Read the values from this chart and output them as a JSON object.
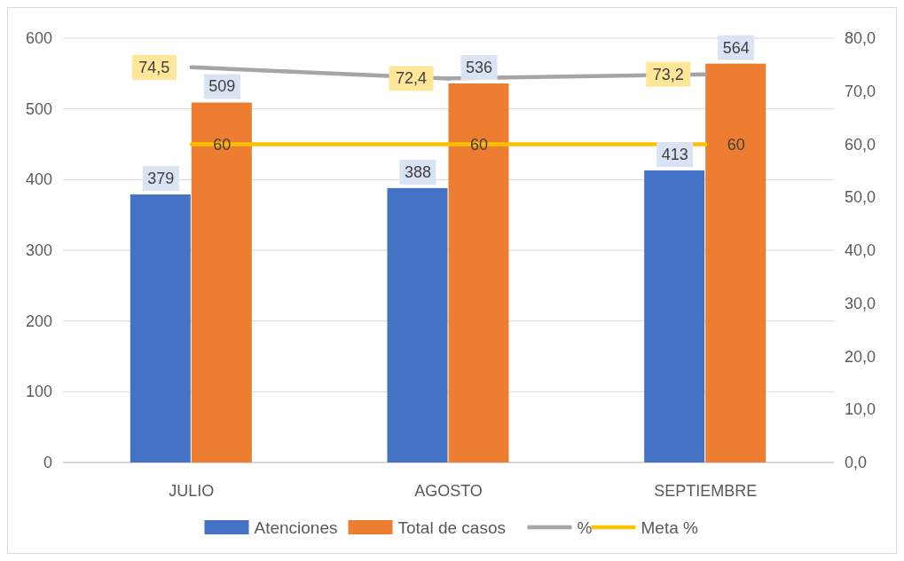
{
  "chart_data": {
    "type": "bar",
    "categories": [
      "JULIO",
      "AGOSTO",
      "SEPTIEMBRE"
    ],
    "series": [
      {
        "name": "Atenciones",
        "color": "#4472c4",
        "values": [
          379,
          388,
          413
        ],
        "value_labels": [
          "379",
          "388",
          "413"
        ]
      },
      {
        "name": "Total de casos",
        "color": "#ed7d31",
        "values": [
          509,
          536,
          564
        ],
        "value_labels": [
          "509",
          "536",
          "564"
        ]
      },
      {
        "name": "%",
        "type": "line",
        "axis": "y2",
        "color": "#a5a5a5",
        "values": [
          74.5,
          72.4,
          73.2
        ],
        "value_labels": [
          "74,5",
          "72,4",
          "73,2"
        ]
      },
      {
        "name": "Meta %",
        "type": "line",
        "axis": "y2",
        "color": "#ffc000",
        "values": [
          60,
          60,
          60
        ],
        "value_labels": [
          "60",
          "60",
          "60"
        ]
      }
    ],
    "ylim": [
      0,
      600
    ],
    "yticks": [
      0,
      100,
      200,
      300,
      400,
      500,
      600
    ],
    "y2lim": [
      0,
      80
    ],
    "y2ticks": [
      {
        "value": 0,
        "label": "0,0"
      },
      {
        "value": 10,
        "label": "10,0"
      },
      {
        "value": 20,
        "label": "20,0"
      },
      {
        "value": 30,
        "label": "30,0"
      },
      {
        "value": 40,
        "label": "40,0"
      },
      {
        "value": 50,
        "label": "50,0"
      },
      {
        "value": 60,
        "label": "60,0"
      },
      {
        "value": 70,
        "label": "70,0"
      },
      {
        "value": 80,
        "label": "80,0"
      }
    ],
    "grid": "y",
    "legend": "bottom"
  }
}
